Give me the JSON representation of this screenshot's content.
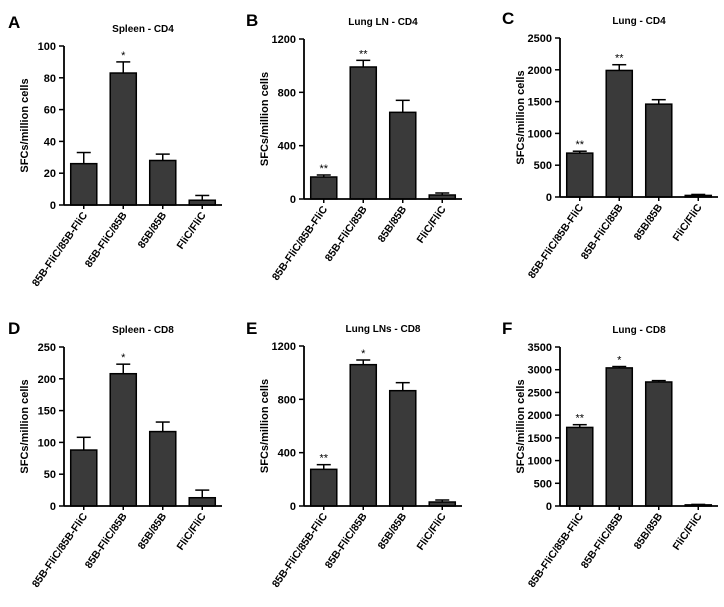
{
  "figure": {
    "ylabel": "SFCs/million cells",
    "bar_color": "#3a3a3a",
    "axis_color": "#000000"
  },
  "chart_data": [
    {
      "panel": "A",
      "type": "bar",
      "title": "Spleen - CD4",
      "ylabel": "SFCs/million cells",
      "categories": [
        "85B-FliC/85B-FliC",
        "85B-FliC/85B",
        "85B/85B",
        "FliC/FliC"
      ],
      "values": [
        26,
        83,
        28,
        3
      ],
      "errors": [
        7,
        7,
        4,
        3
      ],
      "annotations": [
        "",
        "*",
        "",
        ""
      ],
      "ylim": [
        0,
        100
      ],
      "yticks": [
        0,
        20,
        40,
        60,
        80,
        100
      ]
    },
    {
      "panel": "B",
      "type": "bar",
      "title": "Lung LN - CD4",
      "ylabel": "SFCs/million cells",
      "categories": [
        "85B-FliC/85B-FliC",
        "85B-FliC/85B",
        "85B/85B",
        "FliC/FliC"
      ],
      "values": [
        165,
        990,
        650,
        30
      ],
      "errors": [
        15,
        50,
        90,
        15
      ],
      "annotations": [
        "**",
        "**",
        "",
        ""
      ],
      "ylim": [
        0,
        1200
      ],
      "yticks": [
        0,
        400,
        800,
        1200
      ]
    },
    {
      "panel": "C",
      "type": "bar",
      "title": "Lung - CD4",
      "ylabel": "SFCs/million cells",
      "categories": [
        "85B-FliC/85B-FliC",
        "85B-FliC/85B",
        "85B/85B",
        "FliC/FliC"
      ],
      "values": [
        690,
        1990,
        1460,
        25
      ],
      "errors": [
        30,
        90,
        70,
        15
      ],
      "annotations": [
        "**",
        "**",
        "",
        ""
      ],
      "ylim": [
        0,
        2500
      ],
      "yticks": [
        0,
        500,
        1000,
        1500,
        2000,
        2500
      ]
    },
    {
      "panel": "D",
      "type": "bar",
      "title": "Spleen - CD8",
      "ylabel": "SFCs/million cells",
      "categories": [
        "85B-FliC/85B-FliC",
        "85B-FliC/85B",
        "85B/85B",
        "FliC/FliC"
      ],
      "values": [
        88,
        208,
        117,
        13
      ],
      "errors": [
        20,
        15,
        15,
        12
      ],
      "annotations": [
        "",
        "*",
        "",
        ""
      ],
      "ylim": [
        0,
        250
      ],
      "yticks": [
        0,
        50,
        100,
        150,
        200,
        250
      ]
    },
    {
      "panel": "E",
      "type": "bar",
      "title": "Lung LNs - CD8",
      "ylabel": "SFCs/million cells",
      "categories": [
        "85B-FliC/85B-FliC",
        "85B-FliC/85B",
        "85B/85B",
        "FliC/FliC"
      ],
      "values": [
        275,
        1060,
        865,
        30
      ],
      "errors": [
        35,
        35,
        60,
        15
      ],
      "annotations": [
        "**",
        "*",
        "",
        ""
      ],
      "ylim": [
        0,
        1200
      ],
      "yticks": [
        0,
        400,
        800,
        1200
      ]
    },
    {
      "panel": "F",
      "type": "bar",
      "title": "Lung - CD8",
      "ylabel": "SFCs/million cells",
      "categories": [
        "85B-FliC/85B-FliC",
        "85B-FliC/85B",
        "85B/85B",
        "FliC/FliC"
      ],
      "values": [
        1730,
        3040,
        2730,
        25
      ],
      "errors": [
        60,
        30,
        30,
        10
      ],
      "annotations": [
        "**",
        "*",
        "",
        ""
      ],
      "ylim": [
        0,
        3500
      ],
      "yticks": [
        0,
        500,
        1000,
        1500,
        2000,
        2500,
        3000,
        3500
      ]
    }
  ]
}
